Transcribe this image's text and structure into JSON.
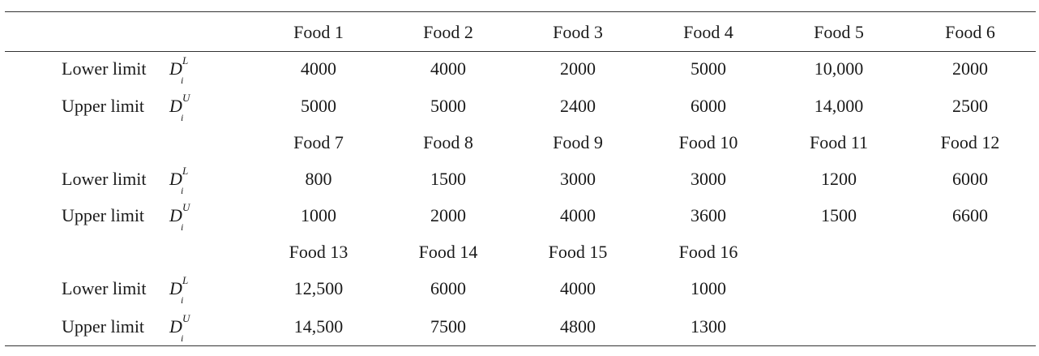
{
  "table": {
    "row_labels": {
      "lower": "Lower limit",
      "upper": "Upper limit"
    },
    "symbols": {
      "base": "D",
      "lower_sup": "L",
      "upper_sup": "U",
      "sub": "i"
    },
    "blocks": [
      {
        "headers": [
          "Food 1",
          "Food 2",
          "Food 3",
          "Food 4",
          "Food 5",
          "Food 6"
        ],
        "lower": [
          "4000",
          "4000",
          "2000",
          "5000",
          "10,000",
          "2000"
        ],
        "upper": [
          "5000",
          "5000",
          "2400",
          "6000",
          "14,000",
          "2500"
        ]
      },
      {
        "headers": [
          "Food 7",
          "Food 8",
          "Food 9",
          "Food 10",
          "Food 11",
          "Food 12"
        ],
        "lower": [
          "800",
          "1500",
          "3000",
          "3000",
          "1200",
          "6000"
        ],
        "upper": [
          "1000",
          "2000",
          "4000",
          "3600",
          "1500",
          "6600"
        ]
      },
      {
        "headers": [
          "Food 13",
          "Food 14",
          "Food 15",
          "Food 16"
        ],
        "lower": [
          "12,500",
          "6000",
          "4000",
          "1000"
        ],
        "upper": [
          "14,500",
          "7500",
          "4800",
          "1300"
        ]
      }
    ]
  }
}
